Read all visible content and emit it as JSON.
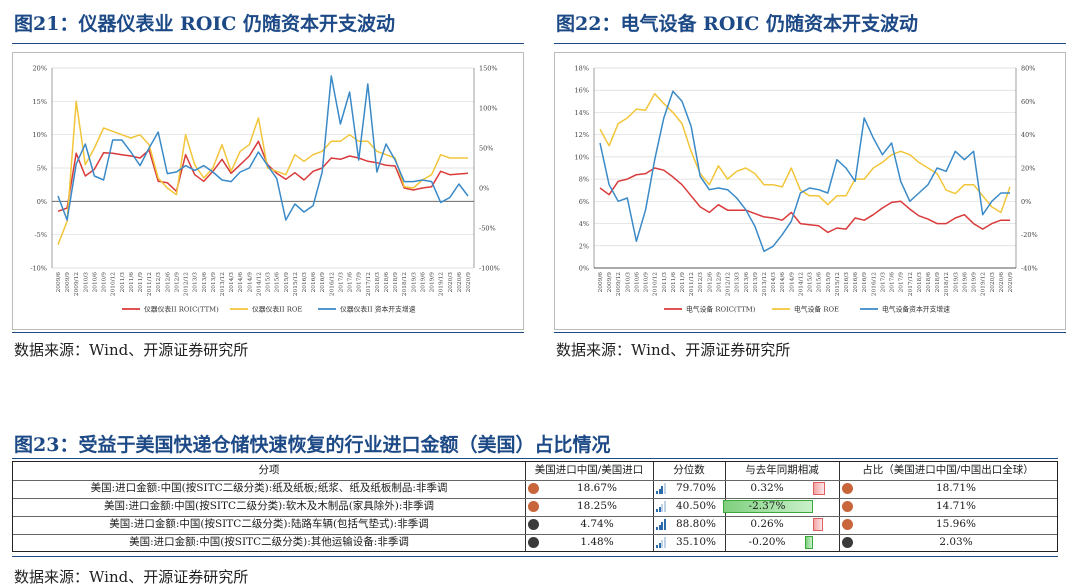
{
  "fig21": {
    "title": "图21：仪器仪表业 ROIC 仍随资本开支波动",
    "source": "数据来源：Wind、开源证券研究所"
  },
  "fig22": {
    "title": "图22：电气设备 ROIC 仍随资本开支波动",
    "source": "数据来源：Wind、开源证券研究所"
  },
  "fig23": {
    "title": "图23：受益于美国快递仓储快速恢复的行业进口金额（美国）占比情况",
    "source": "数据来源：Wind、开源证券研究所",
    "headers": [
      "分项",
      "美国进口中国/美国进口",
      "分位数",
      "与去年同期相减",
      "占比（美国进口中国/中国出口全球）"
    ],
    "rows": [
      {
        "name": "美国:进口金额:中国(按SITC二级分类):纸及纸板;纸浆、纸及纸板制品:非季调",
        "dot_color": "#c8653a",
        "share": "18.67%",
        "pct_rank": "79.70%",
        "pct_rank_value": 0.797,
        "yoy": "0.32%",
        "yoy_value": 0.32,
        "dot2_color": "#c8653a",
        "ratio": "18.71%"
      },
      {
        "name": "美国:进口金额:中国(按SITC二级分类):软木及木制品(家具除外):非季调",
        "dot_color": "#c8653a",
        "share": "18.25%",
        "pct_rank": "40.50%",
        "pct_rank_value": 0.405,
        "yoy": "-2.37%",
        "yoy_value": -2.37,
        "dot2_color": "#c8653a",
        "ratio": "14.71%"
      },
      {
        "name": "美国:进口金额:中国(按SITC二级分类):陆路车辆(包括气垫式):非季调",
        "dot_color": "#3a3a3a",
        "share": "4.74%",
        "pct_rank": "88.80%",
        "pct_rank_value": 0.888,
        "yoy": "0.26%",
        "yoy_value": 0.26,
        "dot2_color": "#c8653a",
        "ratio": "15.96%"
      },
      {
        "name": "美国:进口金额:中国(按SITC二级分类):其他运输设备:非季调",
        "dot_color": "#3a3a3a",
        "share": "1.48%",
        "pct_rank": "35.10%",
        "pct_rank_value": 0.351,
        "yoy": "-0.20%",
        "yoy_value": -0.2,
        "dot2_color": "#3a3a3a",
        "ratio": "2.03%"
      }
    ]
  },
  "chart_data": [
    {
      "type": "line",
      "id": "fig21",
      "x": [
        "2009/6",
        "2009/9",
        "2009/12",
        "2010/3",
        "2010/6",
        "2010/9",
        "2010/12",
        "2011/3",
        "2011/6",
        "2011/9",
        "2011/12",
        "2012/3",
        "2012/6",
        "2012/9",
        "2012/12",
        "2013/3",
        "2013/6",
        "2013/9",
        "2013/12",
        "2014/3",
        "2014/6",
        "2014/9",
        "2014/12",
        "2015/3",
        "2015/6",
        "2015/9",
        "2015/12",
        "2016/3",
        "2016/6",
        "2016/9",
        "2016/12",
        "2017/3",
        "2017/6",
        "2017/9",
        "2017/12",
        "2018/3",
        "2018/6",
        "2018/9",
        "2018/12",
        "2019/3",
        "2019/6",
        "2019/9",
        "2019/12",
        "2020/3",
        "2020/6",
        "2020/9"
      ],
      "x_tick_labels": [
        "2009/6",
        "2009/9",
        "2009/12",
        "2010/3",
        "2010/6",
        "2010/9",
        "2010/12",
        "2011/3",
        "2011/6",
        "2011/9",
        "2011/12",
        "2012/3",
        "2012/6",
        "2012/9",
        "2012/12",
        "2013/3",
        "2013/6",
        "2013/9",
        "2013/12",
        "2014/3",
        "2014/6",
        "2014/9",
        "2014/12",
        "2015/3",
        "2015/6",
        "2015/9",
        "2015/12",
        "2016/3",
        "2016/6",
        "2016/9",
        "2016/12",
        "2017/3",
        "2017/6",
        "2017/9",
        "2017/12",
        "2018/3",
        "2018/6",
        "2018/9",
        "2018/12",
        "2019/3",
        "2019/6",
        "2019/9",
        "2019/12",
        "2020/3",
        "2020/6",
        "2020/9"
      ],
      "ylim_left": [
        -10,
        20
      ],
      "y_ticks_left": [
        "-10%",
        "-5%",
        "0%",
        "5%",
        "10%",
        "15%",
        "20%"
      ],
      "ylim_right": [
        -100,
        150
      ],
      "y_ticks_right": [
        "-100%",
        "-50%",
        "0%",
        "50%",
        "100%",
        "150%"
      ],
      "series": [
        {
          "name": "仪器仪表II ROIC(TTM)",
          "axis": "left",
          "color": "#d93a3a",
          "values": [
            -1.5,
            -1,
            7.2,
            3.8,
            4.8,
            7.3,
            7.2,
            7,
            6.8,
            6.5,
            7.7,
            3,
            2.8,
            1.5,
            7,
            4,
            3,
            4.5,
            6.3,
            4.2,
            5.5,
            6.8,
            9,
            5.5,
            4.2,
            3.3,
            4.3,
            3.2,
            4.5,
            5,
            6.5,
            6.3,
            6.8,
            6.5,
            6,
            5.8,
            5.4,
            5.3,
            2,
            1.7,
            2,
            2.2,
            4.5,
            4,
            4.1,
            4.2
          ]
        },
        {
          "name": "仪器仪表II ROE",
          "axis": "left",
          "color": "#f2c53a",
          "values": [
            -6.5,
            -3,
            15,
            5.5,
            8,
            11,
            10.5,
            10,
            9.5,
            10,
            8.5,
            3.5,
            2,
            1,
            10,
            5.5,
            3.5,
            5,
            8.5,
            4.5,
            7.5,
            8.5,
            12.5,
            5,
            4.5,
            4,
            7,
            6,
            7,
            7.5,
            9,
            9,
            10,
            9,
            9,
            7.5,
            7,
            6.5,
            2.2,
            2,
            3.2,
            4,
            7,
            6.5,
            6.5,
            6.5
          ]
        },
        {
          "name": "仪器仪表II 资本开支增速",
          "axis": "right",
          "color": "#3a8ac8",
          "values": [
            -10,
            -40,
            30,
            55,
            15,
            10,
            60,
            60,
            45,
            28,
            50,
            70,
            18,
            20,
            28,
            22,
            28,
            20,
            10,
            8,
            20,
            25,
            45,
            28,
            12,
            -40,
            -20,
            -30,
            -22,
            20,
            140,
            80,
            120,
            35,
            130,
            20,
            55,
            35,
            8,
            8,
            10,
            8,
            -18,
            -12,
            5,
            -10
          ]
        }
      ]
    },
    {
      "type": "line",
      "id": "fig22",
      "x": [
        "2009/6",
        "2009/9",
        "2009/12",
        "2010/3",
        "2010/6",
        "2010/9",
        "2010/12",
        "2011/3",
        "2011/6",
        "2011/9",
        "2011/12",
        "2012/3",
        "2012/6",
        "2012/9",
        "2012/12",
        "2013/3",
        "2013/6",
        "2013/9",
        "2013/12",
        "2014/3",
        "2014/6",
        "2014/9",
        "2014/12",
        "2015/3",
        "2015/6",
        "2015/9",
        "2015/12",
        "2016/3",
        "2016/6",
        "2016/9",
        "2016/12",
        "2017/3",
        "2017/6",
        "2017/9",
        "2017/12",
        "2018/3",
        "2018/6",
        "2018/9",
        "2018/12",
        "2019/3",
        "2019/6",
        "2019/9",
        "2019/12",
        "2020/3",
        "2020/6",
        "2020/9"
      ],
      "x_tick_labels": [
        "2009/6",
        "2009/9",
        "2009/12",
        "2010/3",
        "2010/6",
        "2010/9",
        "2010/12",
        "2011/3",
        "2011/6",
        "2011/9",
        "2011/12",
        "2012/3",
        "2012/6",
        "2012/9",
        "2012/12",
        "2013/3",
        "2013/6",
        "2013/9",
        "2013/12",
        "2014/3",
        "2014/6",
        "2014/9",
        "2014/12",
        "2015/3",
        "2015/6",
        "2015/9",
        "2015/12",
        "2016/3",
        "2016/6",
        "2016/9",
        "2016/12",
        "2017/3",
        "2017/6",
        "2017/9",
        "2017/12",
        "2018/3",
        "2018/6",
        "2018/9",
        "2018/12",
        "2019/3",
        "2019/6",
        "2019/9",
        "2019/12",
        "2020/3",
        "2020/6",
        "2020/9"
      ],
      "ylim_left": [
        0,
        18
      ],
      "y_ticks_left": [
        "0%",
        "2%",
        "4%",
        "6%",
        "8%",
        "10%",
        "12%",
        "14%",
        "16%",
        "18%"
      ],
      "ylim_right": [
        -40,
        80
      ],
      "y_ticks_right": [
        "-40%",
        "-20%",
        "0%",
        "20%",
        "40%",
        "60%",
        "80%"
      ],
      "series": [
        {
          "name": "电气设备 ROIC(TTM)",
          "axis": "left",
          "color": "#d93a3a",
          "values": [
            7.2,
            6.6,
            7.8,
            8,
            8.4,
            8.5,
            9,
            8.8,
            8.2,
            7.5,
            6.5,
            5.5,
            5,
            5.7,
            5.2,
            5.2,
            5.2,
            4.9,
            4.6,
            4.5,
            4.3,
            5,
            4,
            3.9,
            3.8,
            3.2,
            3.6,
            3.5,
            4.5,
            4.3,
            4.8,
            5.4,
            5.9,
            6,
            5.3,
            4.7,
            4.4,
            4,
            4,
            4.5,
            4.8,
            4,
            3.5,
            4,
            4.3,
            4.3
          ]
        },
        {
          "name": "电气设备 ROE",
          "axis": "left",
          "color": "#f2c53a",
          "values": [
            12.5,
            11,
            13,
            13.5,
            14.3,
            14.2,
            15.7,
            14.8,
            14,
            13,
            10.5,
            8.5,
            7.5,
            9.2,
            8,
            8.7,
            9,
            8.5,
            7.5,
            7.5,
            7.3,
            9,
            7,
            6.5,
            6.5,
            5.7,
            6.5,
            6.5,
            8,
            8,
            9,
            9.5,
            10.2,
            10.5,
            10.2,
            9.5,
            9,
            8.5,
            7,
            6.7,
            7.5,
            7.5,
            6.5,
            5.5,
            5,
            7.3
          ]
        },
        {
          "name": "电气设备资本开支增速",
          "axis": "right",
          "color": "#3a8ac8",
          "values": [
            35,
            10,
            0,
            2,
            -24,
            -5,
            25,
            50,
            66,
            60,
            45,
            15,
            7,
            8,
            7,
            2,
            -5,
            -15,
            -30,
            -27,
            -20,
            -12,
            5,
            8,
            7,
            5,
            25,
            20,
            12,
            50,
            38,
            28,
            35,
            12,
            0,
            5,
            10,
            20,
            18,
            30,
            25,
            30,
            -8,
            0,
            5,
            5
          ]
        }
      ]
    }
  ]
}
